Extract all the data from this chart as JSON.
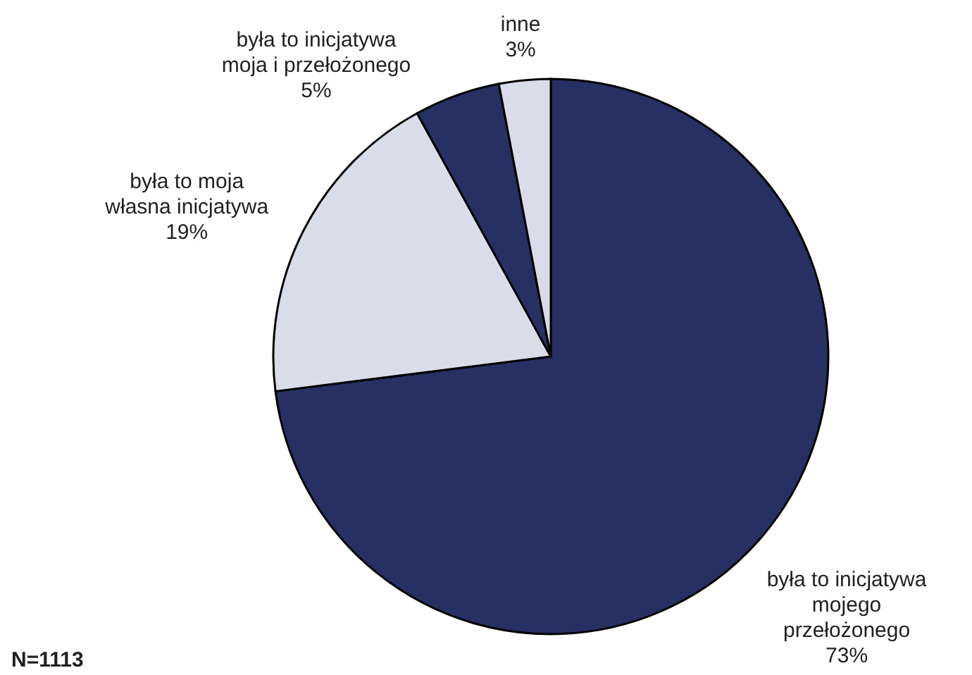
{
  "chart_data": {
    "type": "pie",
    "categories": [
      "była to inicjatywa\nmojego\nprzełożonego",
      "była to moja\nwłasna inicjatywa",
      "była to inicjatywa\nmoja i przełożonego",
      "inne"
    ],
    "values": [
      73,
      19,
      5,
      3
    ],
    "colors": [
      "#263062",
      "#d9dde9",
      "#263062",
      "#d9dde9"
    ],
    "value_labels": [
      "73%",
      "19%",
      "5%",
      "3%"
    ],
    "annotations": [
      "N=1113"
    ]
  }
}
